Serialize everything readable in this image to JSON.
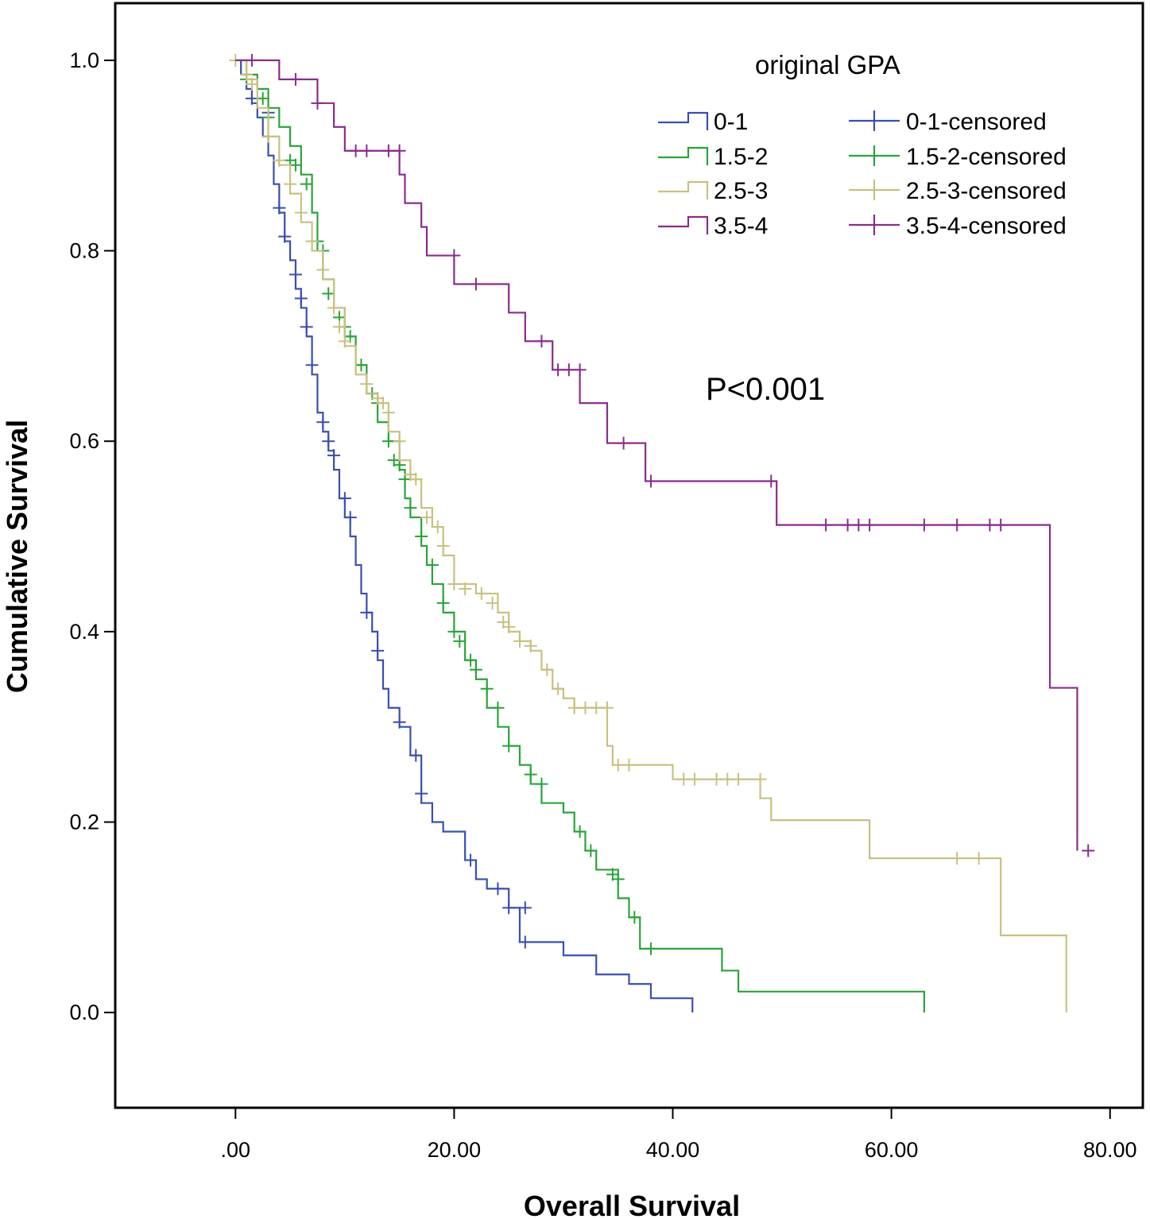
{
  "chart_data": {
    "type": "line",
    "subtype": "kaplan-meier",
    "xlabel": "Overall Survival",
    "ylabel": "Cumulative Survival",
    "xlim": [
      -11,
      83
    ],
    "ylim": [
      -0.1,
      1.06
    ],
    "x_ticks": [
      0,
      20,
      40,
      60,
      80
    ],
    "x_tick_labels": [
      ".00",
      "20.00",
      "40.00",
      "60.00",
      "80.00"
    ],
    "y_ticks": [
      0,
      0.2,
      0.4,
      0.6,
      0.8,
      1.0
    ],
    "y_tick_labels": [
      "0.0",
      "0.2",
      "0.4",
      "0.6",
      "0.8",
      "1.0"
    ],
    "legend": {
      "title": "original GPA",
      "placement": "top-right",
      "entries": [
        "0-1",
        "1.5-2",
        "2.5-3",
        "3.5-4",
        "0-1-censored",
        "1.5-2-censored",
        "2.5-3-censored",
        "3.5-4-censored"
      ]
    },
    "annotation": "P<0.001",
    "series": [
      {
        "name": "0-1",
        "censored_name": "0-1-censored",
        "color": "#3a4fae",
        "steps": [
          [
            0,
            1.0
          ],
          [
            0.5,
            0.985
          ],
          [
            1,
            0.97
          ],
          [
            1.5,
            0.955
          ],
          [
            2,
            0.94
          ],
          [
            2.5,
            0.92
          ],
          [
            3,
            0.9
          ],
          [
            3.5,
            0.87
          ],
          [
            4,
            0.84
          ],
          [
            4.5,
            0.81
          ],
          [
            5,
            0.79
          ],
          [
            5.5,
            0.76
          ],
          [
            6,
            0.74
          ],
          [
            6.5,
            0.71
          ],
          [
            7,
            0.67
          ],
          [
            7.5,
            0.63
          ],
          [
            8,
            0.61
          ],
          [
            8.5,
            0.59
          ],
          [
            9,
            0.57
          ],
          [
            9.5,
            0.54
          ],
          [
            10,
            0.52
          ],
          [
            10.5,
            0.5
          ],
          [
            11,
            0.47
          ],
          [
            11.5,
            0.44
          ],
          [
            12,
            0.42
          ],
          [
            12.5,
            0.4
          ],
          [
            13,
            0.37
          ],
          [
            13.5,
            0.34
          ],
          [
            14,
            0.32
          ],
          [
            15,
            0.3
          ],
          [
            16,
            0.27
          ],
          [
            17,
            0.22
          ],
          [
            18,
            0.2
          ],
          [
            19,
            0.19
          ],
          [
            21,
            0.16
          ],
          [
            22,
            0.14
          ],
          [
            23,
            0.13
          ],
          [
            25,
            0.11
          ],
          [
            26,
            0.074
          ],
          [
            30,
            0.06
          ],
          [
            33,
            0.04
          ],
          [
            36,
            0.03
          ],
          [
            38,
            0.015
          ],
          [
            41.8,
            0.0
          ]
        ],
        "censored_points": [
          [
            1.5,
            0.96
          ],
          [
            3,
            0.945
          ],
          [
            4,
            0.845
          ],
          [
            4.5,
            0.815
          ],
          [
            5.5,
            0.775
          ],
          [
            6,
            0.75
          ],
          [
            6.5,
            0.72
          ],
          [
            7,
            0.68
          ],
          [
            8,
            0.62
          ],
          [
            8.5,
            0.6
          ],
          [
            9,
            0.585
          ],
          [
            10,
            0.54
          ],
          [
            10.5,
            0.52
          ],
          [
            12,
            0.42
          ],
          [
            13,
            0.38
          ],
          [
            15,
            0.305
          ],
          [
            16.5,
            0.27
          ],
          [
            17,
            0.23
          ],
          [
            21.5,
            0.16
          ],
          [
            24,
            0.13
          ],
          [
            25,
            0.11
          ],
          [
            26.5,
            0.11
          ],
          [
            26.5,
            0.074
          ]
        ]
      },
      {
        "name": "1.5-2",
        "censored_name": "1.5-2-censored",
        "color": "#2aa33a",
        "steps": [
          [
            0,
            1.0
          ],
          [
            1,
            0.985
          ],
          [
            2,
            0.97
          ],
          [
            3,
            0.95
          ],
          [
            4,
            0.93
          ],
          [
            5,
            0.91
          ],
          [
            6,
            0.88
          ],
          [
            7,
            0.84
          ],
          [
            7.5,
            0.8
          ],
          [
            8,
            0.77
          ],
          [
            9,
            0.74
          ],
          [
            10,
            0.71
          ],
          [
            11,
            0.68
          ],
          [
            12,
            0.65
          ],
          [
            13,
            0.62
          ],
          [
            14,
            0.6
          ],
          [
            15,
            0.57
          ],
          [
            15.5,
            0.54
          ],
          [
            16,
            0.52
          ],
          [
            17,
            0.49
          ],
          [
            17.5,
            0.47
          ],
          [
            18,
            0.45
          ],
          [
            19,
            0.42
          ],
          [
            20,
            0.4
          ],
          [
            21,
            0.37
          ],
          [
            22,
            0.35
          ],
          [
            23,
            0.32
          ],
          [
            24,
            0.3
          ],
          [
            25,
            0.28
          ],
          [
            26,
            0.26
          ],
          [
            27,
            0.24
          ],
          [
            28,
            0.22
          ],
          [
            30,
            0.21
          ],
          [
            31,
            0.19
          ],
          [
            32,
            0.17
          ],
          [
            33,
            0.15
          ],
          [
            35,
            0.12
          ],
          [
            36,
            0.1
          ],
          [
            37,
            0.067
          ],
          [
            44.5,
            0.044
          ],
          [
            46,
            0.022
          ],
          [
            63,
            0.0
          ]
        ],
        "censored_points": [
          [
            1,
            0.98
          ],
          [
            2.5,
            0.96
          ],
          [
            3,
            0.94
          ],
          [
            5,
            0.895
          ],
          [
            5.5,
            0.89
          ],
          [
            6.5,
            0.87
          ],
          [
            7.5,
            0.81
          ],
          [
            8,
            0.8
          ],
          [
            8.5,
            0.755
          ],
          [
            9.5,
            0.73
          ],
          [
            10,
            0.72
          ],
          [
            10.5,
            0.71
          ],
          [
            11.5,
            0.68
          ],
          [
            12.5,
            0.65
          ],
          [
            13,
            0.64
          ],
          [
            14,
            0.6
          ],
          [
            14.5,
            0.58
          ],
          [
            15,
            0.575
          ],
          [
            15.5,
            0.56
          ],
          [
            16,
            0.53
          ],
          [
            17,
            0.5
          ],
          [
            18,
            0.47
          ],
          [
            19,
            0.43
          ],
          [
            20,
            0.4
          ],
          [
            20.5,
            0.39
          ],
          [
            21.5,
            0.37
          ],
          [
            22,
            0.36
          ],
          [
            23,
            0.34
          ],
          [
            24,
            0.32
          ],
          [
            25,
            0.28
          ],
          [
            27,
            0.25
          ],
          [
            28,
            0.24
          ],
          [
            31.5,
            0.19
          ],
          [
            32.5,
            0.17
          ],
          [
            34.5,
            0.145
          ],
          [
            35,
            0.14
          ],
          [
            36.5,
            0.1
          ],
          [
            38,
            0.067
          ]
        ]
      },
      {
        "name": "2.5-3",
        "censored_name": "2.5-3-censored",
        "color": "#c9c080",
        "steps": [
          [
            0,
            1.0
          ],
          [
            1,
            0.98
          ],
          [
            2,
            0.95
          ],
          [
            3,
            0.92
          ],
          [
            4,
            0.89
          ],
          [
            5,
            0.86
          ],
          [
            6,
            0.83
          ],
          [
            7,
            0.8
          ],
          [
            8,
            0.77
          ],
          [
            9,
            0.74
          ],
          [
            10,
            0.7
          ],
          [
            11,
            0.67
          ],
          [
            12,
            0.65
          ],
          [
            13,
            0.64
          ],
          [
            14,
            0.61
          ],
          [
            15,
            0.58
          ],
          [
            16,
            0.56
          ],
          [
            17,
            0.53
          ],
          [
            18,
            0.51
          ],
          [
            19,
            0.48
          ],
          [
            20,
            0.45
          ],
          [
            22,
            0.44
          ],
          [
            24,
            0.42
          ],
          [
            25,
            0.4
          ],
          [
            26,
            0.39
          ],
          [
            27,
            0.38
          ],
          [
            28,
            0.36
          ],
          [
            29,
            0.34
          ],
          [
            30,
            0.33
          ],
          [
            31,
            0.32
          ],
          [
            34,
            0.28
          ],
          [
            34.5,
            0.26
          ],
          [
            40,
            0.245
          ],
          [
            48,
            0.225
          ],
          [
            49,
            0.202
          ],
          [
            58,
            0.162
          ],
          [
            70,
            0.081
          ],
          [
            76,
            0.0
          ]
        ],
        "censored_points": [
          [
            0,
            1.0
          ],
          [
            1,
            0.985
          ],
          [
            1.5,
            0.975
          ],
          [
            3,
            0.92
          ],
          [
            4,
            0.895
          ],
          [
            5,
            0.87
          ],
          [
            6,
            0.84
          ],
          [
            7,
            0.81
          ],
          [
            8,
            0.78
          ],
          [
            9,
            0.74
          ],
          [
            9.5,
            0.72
          ],
          [
            10,
            0.705
          ],
          [
            12,
            0.66
          ],
          [
            13,
            0.645
          ],
          [
            13.5,
            0.64
          ],
          [
            14,
            0.63
          ],
          [
            15,
            0.6
          ],
          [
            16,
            0.565
          ],
          [
            16.5,
            0.56
          ],
          [
            17.5,
            0.52
          ],
          [
            18.5,
            0.51
          ],
          [
            19,
            0.49
          ],
          [
            20,
            0.45
          ],
          [
            21,
            0.445
          ],
          [
            22.5,
            0.44
          ],
          [
            23.5,
            0.43
          ],
          [
            24.5,
            0.41
          ],
          [
            25,
            0.405
          ],
          [
            26,
            0.39
          ],
          [
            27,
            0.385
          ],
          [
            28.5,
            0.36
          ],
          [
            29.5,
            0.34
          ],
          [
            31,
            0.32
          ],
          [
            32,
            0.32
          ],
          [
            33,
            0.32
          ],
          [
            34,
            0.32
          ],
          [
            35,
            0.26
          ],
          [
            36,
            0.26
          ],
          [
            41,
            0.245
          ],
          [
            42,
            0.245
          ],
          [
            44,
            0.245
          ],
          [
            45,
            0.245
          ],
          [
            46,
            0.245
          ],
          [
            48,
            0.245
          ],
          [
            66,
            0.162
          ],
          [
            68,
            0.162
          ]
        ]
      },
      {
        "name": "3.5-4",
        "censored_name": "3.5-4-censored",
        "color": "#8a2c8c",
        "steps": [
          [
            0,
            1.0
          ],
          [
            4,
            0.98
          ],
          [
            7.5,
            0.955
          ],
          [
            9,
            0.93
          ],
          [
            10,
            0.905
          ],
          [
            15,
            0.88
          ],
          [
            15.5,
            0.85
          ],
          [
            17,
            0.825
          ],
          [
            17.5,
            0.795
          ],
          [
            20,
            0.765
          ],
          [
            25,
            0.735
          ],
          [
            26.5,
            0.705
          ],
          [
            29,
            0.675
          ],
          [
            31.5,
            0.64
          ],
          [
            34,
            0.598
          ],
          [
            37.5,
            0.558
          ],
          [
            49.5,
            0.512
          ],
          [
            74.5,
            0.341
          ],
          [
            77,
            0.17
          ]
        ],
        "censored_points": [
          [
            1.5,
            1.0
          ],
          [
            5.5,
            0.98
          ],
          [
            7.5,
            0.955
          ],
          [
            11,
            0.905
          ],
          [
            12,
            0.905
          ],
          [
            14,
            0.905
          ],
          [
            15,
            0.905
          ],
          [
            20,
            0.795
          ],
          [
            22,
            0.765
          ],
          [
            28,
            0.705
          ],
          [
            29.5,
            0.675
          ],
          [
            30.5,
            0.675
          ],
          [
            31.5,
            0.675
          ],
          [
            35.5,
            0.598
          ],
          [
            38,
            0.558
          ],
          [
            49,
            0.558
          ],
          [
            54,
            0.512
          ],
          [
            56,
            0.512
          ],
          [
            57,
            0.512
          ],
          [
            58,
            0.512
          ],
          [
            63,
            0.512
          ],
          [
            66,
            0.512
          ],
          [
            69,
            0.512
          ],
          [
            70,
            0.512
          ],
          [
            78,
            0.17
          ]
        ]
      }
    ]
  }
}
